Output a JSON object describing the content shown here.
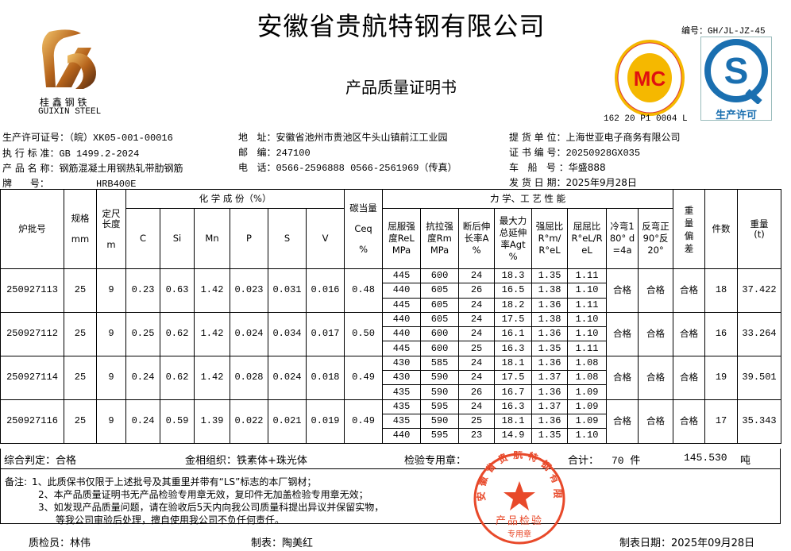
{
  "header": {
    "company": "安徽省贵航特钢有限公司",
    "doc_title": "产品质量证明书",
    "doc_code": "编号：GH/JL-JZ-45",
    "logo": {
      "cn": "桂 鑫 钢 铁",
      "en": "GUIXIN  STEEL"
    },
    "mc_logo": {
      "ring_text_top": "冶金产品认证",
      "ring_text_bottom": "Metallurgical Product Certification",
      "center": "MC",
      "code": "162 20 P1 0004 L"
    },
    "qs_logo": {
      "label": "生产许可"
    }
  },
  "info_left": [
    {
      "label": "生产许可证号：",
      "value": "（皖）XK05-001-00016"
    },
    {
      "label": "执 行 标 准：",
      "value": "GB 1499.2-2024"
    },
    {
      "label": "产 品 名 称：",
      "value": "钢筋混凝土用钢热轧带肋钢筋"
    },
    {
      "label": "牌      号：",
      "value": "HRB400E"
    }
  ],
  "info_mid": [
    {
      "label": "地   址：",
      "value": "安徽省池州市贵池区牛头山镇前江工业园"
    },
    {
      "label": "邮   编：",
      "value": "247100"
    },
    {
      "label": "电   话：",
      "value": "0566-2596888  0566-2561969（传真）"
    }
  ],
  "info_right": [
    {
      "label": "提 货 单 位：",
      "value": "上海世亚电子商务有限公司"
    },
    {
      "label": "证 书 编 号：",
      "value": "20250928GX035"
    },
    {
      "label": "车   船   号 ：",
      "value": "华盛888"
    },
    {
      "label": "发 货 日 期：",
      "value": "2025年9月28日"
    }
  ],
  "table": {
    "headers": {
      "batch": "炉批号",
      "spec": "规格",
      "spec_unit": "mm",
      "length": "定尺长度",
      "length_unit": "m",
      "chem_group": "化 学 成 份（%）",
      "chem": [
        "C",
        "Si",
        "Mn",
        "P",
        "S",
        "V"
      ],
      "ceq": "碳当量",
      "ceq_sym": "Ceq",
      "ceq_unit": "%",
      "mech_group": "力 学、工 艺 性 能",
      "mech": [
        "屈服强度ReL MPa",
        "抗拉强度Rm MPa",
        "断后伸长率A %",
        "最大力总延伸率Agt %",
        "强屈比R°m/R°eL",
        "屈屈比R°eL/ReL",
        "冷弯180° d=4a",
        "反弯正90°反20°"
      ],
      "weight_dev": "重量偏差",
      "pieces": "件数",
      "weight": "重量(t)"
    },
    "rows": [
      {
        "batch": "250927113",
        "spec": "25",
        "length": "9",
        "chem": [
          "0.23",
          "0.63",
          "1.42",
          "0.023",
          "0.031",
          "0.016"
        ],
        "ceq": "0.48",
        "tests": [
          [
            "445",
            "600",
            "24",
            "18.3",
            "1.35",
            "1.11"
          ],
          [
            "440",
            "605",
            "26",
            "16.5",
            "1.38",
            "1.10"
          ],
          [
            "445",
            "605",
            "24",
            "18.2",
            "1.36",
            "1.11"
          ]
        ],
        "cold_bend": "合格",
        "reverse_bend": "合格",
        "weight_dev": "合格",
        "pieces": "18",
        "weight": "37.422"
      },
      {
        "batch": "250927112",
        "spec": "25",
        "length": "9",
        "chem": [
          "0.25",
          "0.62",
          "1.42",
          "0.024",
          "0.034",
          "0.017"
        ],
        "ceq": "0.50",
        "tests": [
          [
            "440",
            "605",
            "24",
            "17.5",
            "1.38",
            "1.10"
          ],
          [
            "440",
            "600",
            "24",
            "16.1",
            "1.36",
            "1.10"
          ],
          [
            "445",
            "600",
            "25",
            "16.3",
            "1.35",
            "1.11"
          ]
        ],
        "cold_bend": "合格",
        "reverse_bend": "合格",
        "weight_dev": "合格",
        "pieces": "16",
        "weight": "33.264"
      },
      {
        "batch": "250927114",
        "spec": "25",
        "length": "9",
        "chem": [
          "0.24",
          "0.62",
          "1.42",
          "0.028",
          "0.024",
          "0.018"
        ],
        "ceq": "0.49",
        "tests": [
          [
            "430",
            "585",
            "24",
            "18.1",
            "1.36",
            "1.08"
          ],
          [
            "430",
            "590",
            "24",
            "17.5",
            "1.37",
            "1.08"
          ],
          [
            "435",
            "590",
            "26",
            "16.7",
            "1.36",
            "1.09"
          ]
        ],
        "cold_bend": "合格",
        "reverse_bend": "合格",
        "weight_dev": "合格",
        "pieces": "19",
        "weight": "39.501"
      },
      {
        "batch": "250927116",
        "spec": "25",
        "length": "9",
        "chem": [
          "0.24",
          "0.59",
          "1.39",
          "0.022",
          "0.021",
          "0.019"
        ],
        "ceq": "0.49",
        "tests": [
          [
            "435",
            "595",
            "24",
            "16.3",
            "1.37",
            "1.09"
          ],
          [
            "435",
            "590",
            "25",
            "18.1",
            "1.36",
            "1.09"
          ],
          [
            "440",
            "595",
            "23",
            "14.9",
            "1.35",
            "1.10"
          ]
        ],
        "cold_bend": "合格",
        "reverse_bend": "合格",
        "weight_dev": "合格",
        "pieces": "17",
        "weight": "35.343"
      }
    ]
  },
  "summary": {
    "judgement": "综合判定：合格",
    "structure": "金相组织：铁素体+珠光体",
    "seal_label": "检验专用章：",
    "total_label": "合计：",
    "total_pieces": "70 件",
    "total_weight": "145.530",
    "weight_unit": "吨"
  },
  "notes": {
    "label": "备注:",
    "lines": [
      "1、此质保书仅限于上述批号及其重里并带有“LS”标志的本厂钢材；",
      "2、本产品质量证明书无产品检验专用章无效，复印件无加盖检验专用章无效；",
      "3、如发现产品质量问题，请在验收后5天内向我公司质量科提出异议并保留实物，",
      "等我公司审验后处理，擅自使用我公司不负任何责任。"
    ]
  },
  "footer": {
    "inspector": "质检员：林伟",
    "preparer": "制表：陶美红",
    "date": "制表日期：2025年09月28日"
  },
  "stamp": {
    "ring": "安徽省贵航特钢有限公司",
    "line1": "产品检验",
    "line2": "专用章",
    "color": "#e8492a"
  }
}
